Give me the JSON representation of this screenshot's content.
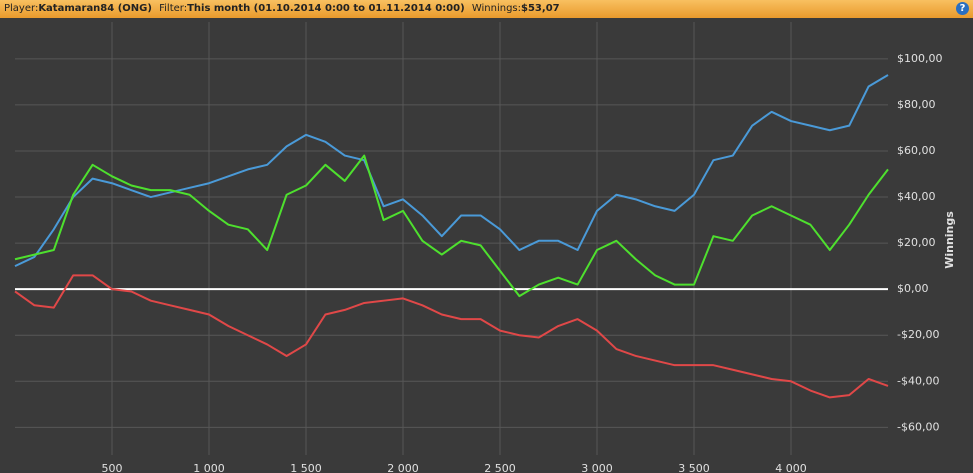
{
  "header": {
    "player_label": "Player:",
    "player": "Katamaran84 (ONG)",
    "filter_label": "Filter:",
    "filter": "This month (01.10.2014 0:00 to 01.11.2014 0:00)",
    "winnings_label": "Winnings:",
    "winnings": "$53,07",
    "help": "?"
  },
  "chart_data": {
    "type": "line",
    "y_label": "Winnings",
    "x": [
      0,
      100,
      200,
      300,
      400,
      500,
      600,
      700,
      800,
      900,
      1000,
      1100,
      1200,
      1300,
      1400,
      1500,
      1600,
      1700,
      1800,
      1900,
      2000,
      2100,
      2200,
      2300,
      2400,
      2500,
      2600,
      2700,
      2800,
      2900,
      3000,
      3100,
      3200,
      3300,
      3400,
      3500,
      3600,
      3700,
      3800,
      3900,
      4000,
      4100,
      4200,
      4300,
      4400,
      4500
    ],
    "series": [
      {
        "color": "#4a9ad8",
        "values": [
          10,
          14,
          26,
          40,
          48,
          46,
          43,
          40,
          42,
          44,
          46,
          49,
          52,
          54,
          62,
          67,
          64,
          58,
          56,
          36,
          39,
          32,
          23,
          32,
          32,
          26,
          17,
          21,
          21,
          17,
          34,
          41,
          39,
          36,
          34,
          41,
          56,
          58,
          71,
          77,
          73,
          71,
          69,
          71,
          88,
          93
        ]
      },
      {
        "color": "#4ee02e",
        "values": [
          13,
          15,
          17,
          41,
          54,
          49,
          45,
          43,
          43,
          41,
          34,
          28,
          26,
          17,
          41,
          45,
          54,
          47,
          58,
          30,
          34,
          21,
          15,
          21,
          19,
          8,
          -3,
          2,
          5,
          2,
          17,
          21,
          13,
          6,
          2,
          2,
          23,
          21,
          32,
          36,
          32,
          28,
          17,
          28,
          41,
          52
        ]
      },
      {
        "color": "#e04848",
        "values": [
          -1,
          -7,
          -8,
          6,
          6,
          0,
          -1,
          -5,
          -7,
          -9,
          -11,
          -16,
          -20,
          -24,
          -29,
          -24,
          -11,
          -9,
          -6,
          -5,
          -4,
          -7,
          -11,
          -13,
          -13,
          -18,
          -20,
          -21,
          -16,
          -13,
          -18,
          -26,
          -29,
          -31,
          -33,
          -33,
          -33,
          -35,
          -37,
          -39,
          -40,
          -44,
          -47,
          -46,
          -39,
          -42
        ]
      }
    ],
    "xlim": [
      0,
      4500
    ],
    "xticks": [
      500,
      {
        "value": 1000,
        "label": "1 000"
      },
      {
        "value": 1500,
        "label": "1 500"
      },
      {
        "value": 2000,
        "label": "2 000"
      },
      {
        "value": 2500,
        "label": "2 500"
      },
      {
        "value": 3000,
        "label": "3 000"
      },
      {
        "value": 3500,
        "label": "3 500"
      },
      {
        "value": 4000,
        "label": "4 000"
      }
    ],
    "ylim": [
      -72,
      116
    ],
    "yticks": [
      {
        "value": -60,
        "label": "-$60,00"
      },
      {
        "value": -40,
        "label": "-$40,00"
      },
      {
        "value": -20,
        "label": "-$20,00"
      },
      {
        "value": 0,
        "label": "$0,00"
      },
      {
        "value": 20,
        "label": "$20,00"
      },
      {
        "value": 40,
        "label": "$40,00"
      },
      {
        "value": 60,
        "label": "$60,00"
      },
      {
        "value": 80,
        "label": "$80,00"
      },
      {
        "value": 100,
        "label": "$100,00"
      }
    ],
    "grid": true
  }
}
